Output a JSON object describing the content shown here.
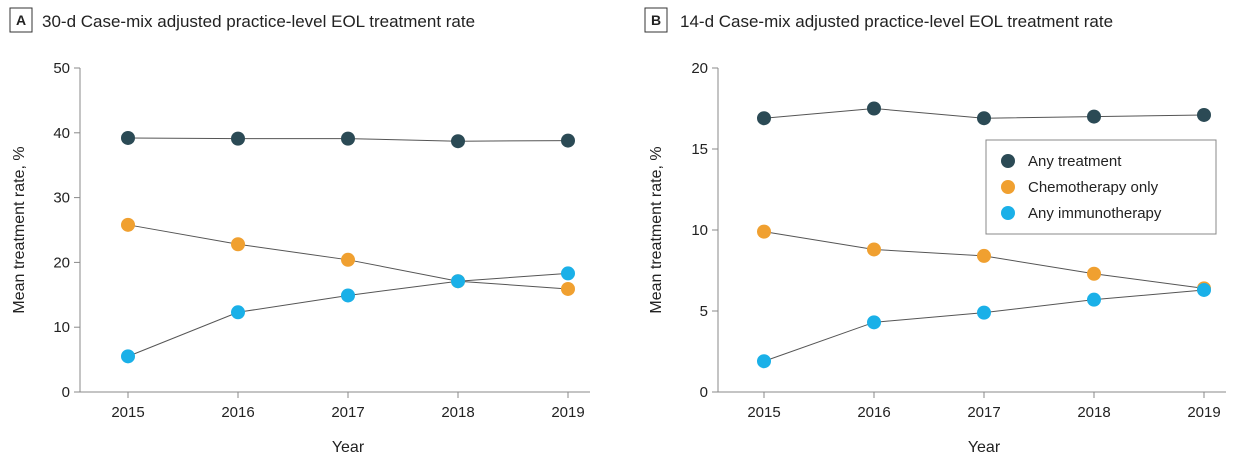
{
  "chart_data": [
    {
      "type": "line",
      "panel_letter": "A",
      "title": "30-d Case-mix adjusted practice-level EOL treatment rate",
      "xlabel": "Year",
      "ylabel": "Mean treatment rate, %",
      "categories": [
        "2015",
        "2016",
        "2017",
        "2018",
        "2019"
      ],
      "ylim": [
        0,
        50
      ],
      "yticks": [
        0,
        10,
        20,
        30,
        40,
        50
      ],
      "grid": false,
      "series": [
        {
          "name": "Any treatment",
          "color": "#2b4a55",
          "values": [
            39.2,
            39.1,
            39.1,
            38.7,
            38.8
          ]
        },
        {
          "name": "Chemotherapy only",
          "color": "#f0a030",
          "values": [
            25.8,
            22.8,
            20.4,
            17.1,
            15.9
          ]
        },
        {
          "name": "Any immunotherapy",
          "color": "#1ab0e8",
          "values": [
            5.5,
            12.3,
            14.9,
            17.1,
            18.3
          ]
        }
      ]
    },
    {
      "type": "line",
      "panel_letter": "B",
      "title": "14-d Case-mix adjusted practice-level EOL treatment rate",
      "xlabel": "Year",
      "ylabel": "Mean treatment rate, %",
      "categories": [
        "2015",
        "2016",
        "2017",
        "2018",
        "2019"
      ],
      "ylim": [
        0,
        20
      ],
      "yticks": [
        0,
        5,
        10,
        15,
        20
      ],
      "grid": false,
      "legend_position": "right",
      "series": [
        {
          "name": "Any treatment",
          "color": "#2b4a55",
          "values": [
            16.9,
            17.5,
            16.9,
            17.0,
            17.1
          ]
        },
        {
          "name": "Chemotherapy only",
          "color": "#f0a030",
          "values": [
            9.9,
            8.8,
            8.4,
            7.3,
            6.4
          ]
        },
        {
          "name": "Any immunotherapy",
          "color": "#1ab0e8",
          "values": [
            1.9,
            4.3,
            4.9,
            5.7,
            6.3
          ]
        }
      ]
    }
  ]
}
